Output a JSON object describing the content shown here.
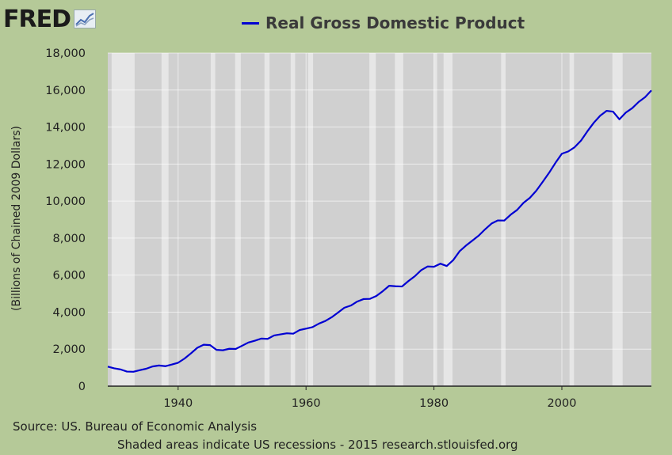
{
  "logo": {
    "text": "FRED",
    "icon": "chart-trend-icon"
  },
  "chart_data": {
    "type": "line",
    "title": "",
    "xlabel": "",
    "ylabel": "(Billions of Chained 2009 Dollars)",
    "xlim": [
      1929,
      2014
    ],
    "ylim": [
      0,
      18000
    ],
    "xticks": [
      1940,
      1960,
      1980,
      2000
    ],
    "yticks": [
      0,
      2000,
      4000,
      6000,
      8000,
      10000,
      12000,
      14000,
      16000,
      18000
    ],
    "ytick_labels": [
      "0",
      "2,000",
      "4,000",
      "6,000",
      "8,000",
      "10,000",
      "12,000",
      "14,000",
      "16,000",
      "18,000"
    ],
    "grid": true,
    "legend": "top",
    "recessions": [
      [
        1929.6,
        1933.2
      ],
      [
        1937.4,
        1938.5
      ],
      [
        1945.1,
        1945.8
      ],
      [
        1948.9,
        1949.8
      ],
      [
        1953.5,
        1954.3
      ],
      [
        1957.6,
        1958.3
      ],
      [
        1960.3,
        1961.1
      ],
      [
        1969.9,
        1970.9
      ],
      [
        1973.9,
        1975.2
      ],
      [
        1980.0,
        1980.5
      ],
      [
        1981.5,
        1982.9
      ],
      [
        1990.5,
        1991.2
      ],
      [
        2001.2,
        2001.9
      ],
      [
        2007.9,
        2009.5
      ]
    ],
    "series": [
      {
        "name": "Real Gross Domestic Product",
        "color": "#0000d2",
        "x": [
          1929,
          1930,
          1931,
          1932,
          1933,
          1934,
          1935,
          1936,
          1937,
          1938,
          1939,
          1940,
          1941,
          1942,
          1943,
          1944,
          1945,
          1946,
          1947,
          1948,
          1949,
          1950,
          1951,
          1952,
          1953,
          1954,
          1955,
          1956,
          1957,
          1958,
          1959,
          1960,
          1961,
          1962,
          1963,
          1964,
          1965,
          1966,
          1967,
          1968,
          1969,
          1970,
          1971,
          1972,
          1973,
          1974,
          1975,
          1976,
          1977,
          1978,
          1979,
          1980,
          1981,
          1982,
          1983,
          1984,
          1985,
          1986,
          1987,
          1988,
          1989,
          1990,
          1991,
          1992,
          1993,
          1994,
          1995,
          1996,
          1997,
          1998,
          1999,
          2000,
          2001,
          2002,
          2003,
          2004,
          2005,
          2006,
          2007,
          2008,
          2009,
          2010,
          2011,
          2012,
          2013,
          2014
        ],
        "values": [
          1056,
          966,
          904,
          788,
          778,
          862,
          940,
          1063,
          1117,
          1079,
          1167,
          1266,
          1491,
          1772,
          2074,
          2240,
          2217,
          1960,
          1940,
          2020,
          2009,
          2184,
          2360,
          2456,
          2571,
          2556,
          2739,
          2797,
          2856,
          2835,
          3032,
          3109,
          3189,
          3376,
          3519,
          3721,
          3977,
          4238,
          4355,
          4570,
          4706,
          4717,
          4874,
          5132,
          5424,
          5397,
          5385,
          5675,
          5937,
          6267,
          6466,
          6451,
          6618,
          6492,
          6804,
          7285,
          7593,
          7860,
          8133,
          8475,
          8786,
          8955,
          8948,
          9267,
          9521,
          9905,
          10175,
          10561,
          11035,
          11526,
          12066,
          12560,
          12683,
          12910,
          13271,
          13774,
          14235,
          14615,
          14877,
          14834,
          14418,
          14784,
          15021,
          15355,
          15612,
          15982
        ]
      }
    ]
  },
  "footer": {
    "source": "Source: US. Bureau of Economic Analysis",
    "note": "Shaded areas indicate US recessions - 2015 research.stlouisfed.org"
  }
}
